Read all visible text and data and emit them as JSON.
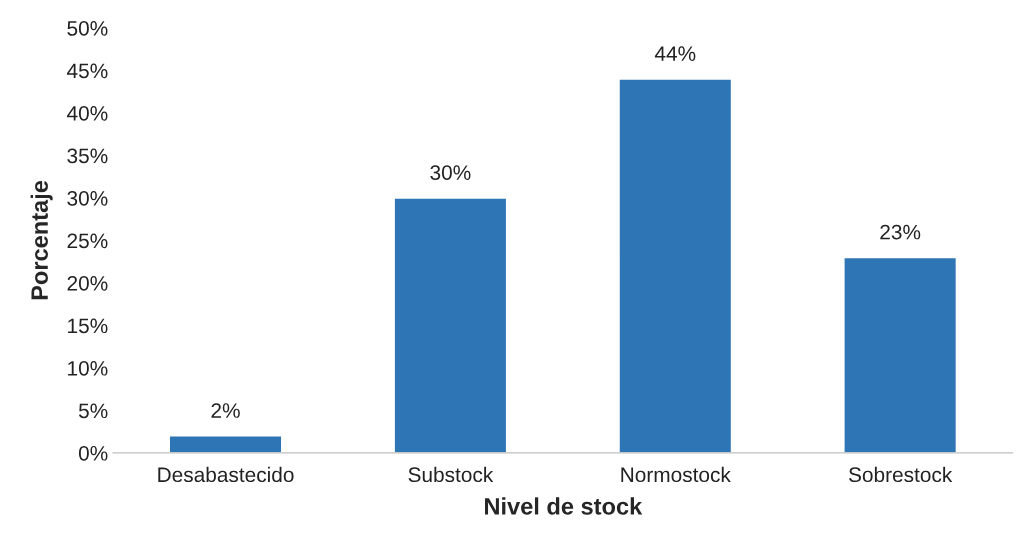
{
  "chart_data": {
    "type": "bar",
    "xlabel": "Nivel de stock",
    "ylabel": "Porcentaje",
    "categories": [
      "Desabastecido",
      "Substock",
      "Normostock",
      "Sobrestock"
    ],
    "values": [
      2,
      30,
      44,
      23
    ],
    "value_labels": [
      "2%",
      "30%",
      "44%",
      "23%"
    ],
    "color": "#2e75b6",
    "ylim": [
      0,
      50
    ],
    "yticks": [
      {
        "value": 0,
        "label": "0%"
      },
      {
        "value": 5,
        "label": "5%"
      },
      {
        "value": 10,
        "label": "10%"
      },
      {
        "value": 15,
        "label": "15%"
      },
      {
        "value": 20,
        "label": "20%"
      },
      {
        "value": 25,
        "label": "25%"
      },
      {
        "value": 30,
        "label": "30%"
      },
      {
        "value": 35,
        "label": "35%"
      },
      {
        "value": 40,
        "label": "40%"
      },
      {
        "value": 45,
        "label": "45%"
      },
      {
        "value": 50,
        "label": "50%"
      }
    ]
  }
}
